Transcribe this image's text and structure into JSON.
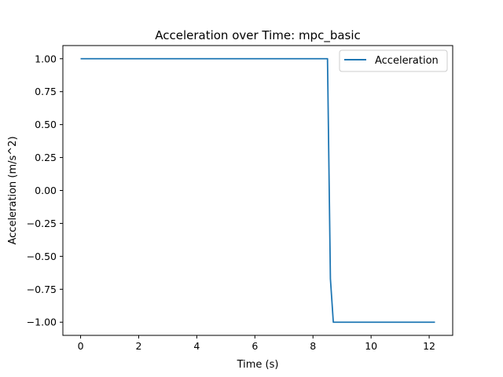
{
  "chart_data": {
    "type": "line",
    "title": "Acceleration over Time: mpc_basic",
    "xlabel": "Time (s)",
    "ylabel": "Acceleration (m/s^2)",
    "xlim": [
      -0.61,
      12.81
    ],
    "ylim": [
      -1.1,
      1.1
    ],
    "xticks": [
      0,
      2,
      4,
      6,
      8,
      10,
      12
    ],
    "xtick_labels": [
      "0",
      "2",
      "4",
      "6",
      "8",
      "10",
      "12"
    ],
    "yticks": [
      -1.0,
      -0.75,
      -0.5,
      -0.25,
      0.0,
      0.25,
      0.5,
      0.75,
      1.0
    ],
    "ytick_labels": [
      "−1.00",
      "−0.75",
      "−0.50",
      "−0.25",
      "0.00",
      "0.25",
      "0.50",
      "0.75",
      "1.00"
    ],
    "grid": false,
    "legend_position": "top-right",
    "series": [
      {
        "name": "Acceleration",
        "color": "#1f77b4",
        "x": [
          0.0,
          8.5,
          8.6,
          8.7,
          12.2
        ],
        "y": [
          1.0,
          1.0,
          -0.67,
          -1.0,
          -1.0
        ]
      }
    ]
  }
}
